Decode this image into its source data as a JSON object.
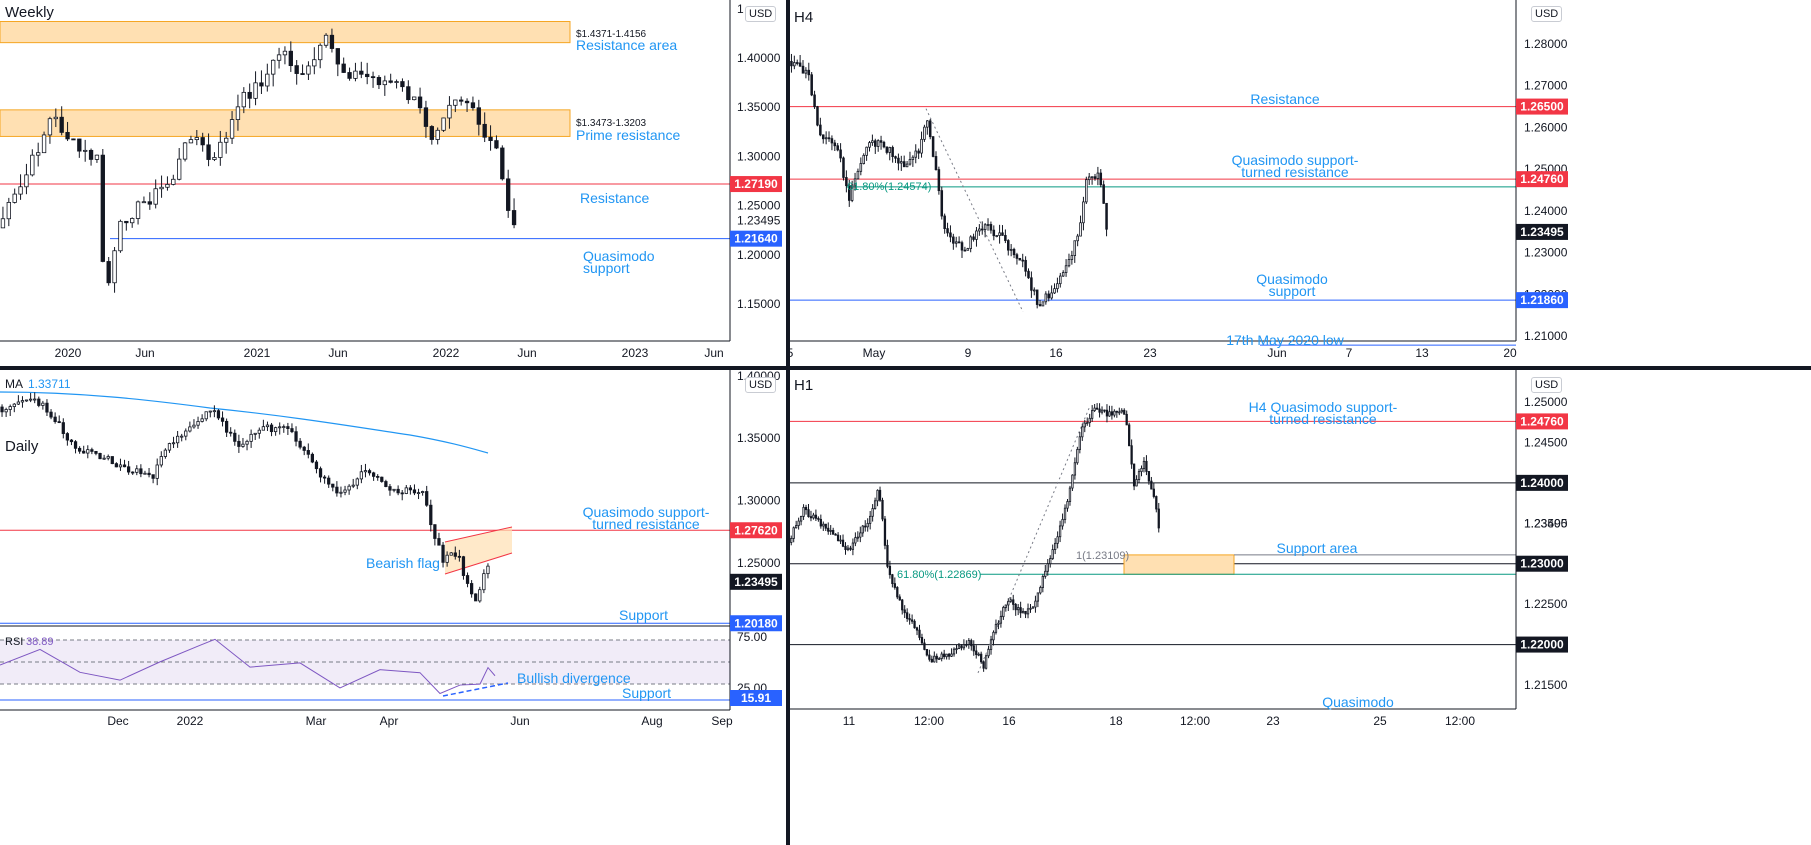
{
  "panels": {
    "weekly": {
      "title": "Weekly",
      "currency": "USD",
      "y_ticks": [
        "1.40000",
        "1.35000",
        "1.30000",
        "1.25000",
        "1.20000",
        "1.15000"
      ],
      "y_tick_values": [
        1.4,
        1.35,
        1.3,
        1.25,
        1.2,
        1.15
      ],
      "y_top_partial": "1",
      "x_ticks": [
        "2020",
        "Jun",
        "2021",
        "Jun",
        "2022",
        "Jun",
        "2023",
        "Jun"
      ],
      "current_price": "1.23495",
      "levels": [
        {
          "value": 1.2719,
          "label": "1.27190",
          "name": "Resistance",
          "color": "#f23645"
        },
        {
          "value": 1.2164,
          "label": "1.21640",
          "name": "Quasimodo support",
          "color": "#2962ff"
        }
      ],
      "zones": [
        {
          "range_text": "$1.4371-1.4156",
          "name": "Resistance area",
          "top": 1.4371,
          "bottom": 1.4156
        },
        {
          "range_text": "$1.3473-1.3203",
          "name": "Prime resistance",
          "top": 1.3473,
          "bottom": 1.3203
        }
      ],
      "annotations": {
        "resistance": "Resistance",
        "qm_line1": "Quasimodo",
        "qm_line2": "support"
      }
    },
    "h4": {
      "title": "H4",
      "currency": "USD",
      "y_ticks": [
        "1.28000",
        "1.27000",
        "1.26000",
        "1.25000",
        "1.24000",
        "1.23000",
        "1.22000",
        "1.21000"
      ],
      "y_tick_values": [
        1.28,
        1.27,
        1.26,
        1.25,
        1.24,
        1.23,
        1.22,
        1.21
      ],
      "x_ticks": [
        "5",
        "May",
        "9",
        "16",
        "23",
        "Jun",
        "7",
        "13",
        "20"
      ],
      "current_price": "1.23495",
      "levels": [
        {
          "value": 1.265,
          "label": "1.26500",
          "name": "Resistance",
          "color": "#f23645"
        },
        {
          "value": 1.2476,
          "label": "1.24760",
          "name": "Quasimodo support-turned resistance",
          "color": "#f23645"
        },
        {
          "value": 1.2186,
          "label": "1.21860",
          "name": "Quasimodo support",
          "color": "#2962ff"
        }
      ],
      "fib_text": "61.80%(1.24574)",
      "annotations": {
        "resistance": "Resistance",
        "qst1": "Quasimodo support-",
        "qst2": "turned resistance",
        "qs1": "Quasimodo",
        "qs2": "support",
        "low": "17th May 2020 low"
      }
    },
    "daily": {
      "title": "Daily",
      "currency": "USD",
      "ma_label": "MA",
      "ma_value": "1.33711",
      "y_ticks": [
        "1.35000",
        "1.30000",
        "1.25000"
      ],
      "y_tick_values": [
        1.35,
        1.3,
        1.25
      ],
      "y_top_partial": "1.40000",
      "x_ticks": [
        "Dec",
        "2022",
        "Mar",
        "Apr",
        "Jun",
        "Aug",
        "Sep"
      ],
      "current_price": "1.23495",
      "levels": [
        {
          "value": 1.2762,
          "label": "1.27620",
          "name": "Quasimodo support-turned resistance",
          "color": "#f23645"
        },
        {
          "value": 1.2018,
          "label": "1.20180",
          "name": "Support",
          "color": "#2962ff"
        }
      ],
      "annotations": {
        "qst1": "Quasimodo support-",
        "qst2": "turned resistance",
        "flag": "Bearish flag",
        "support": "Support"
      },
      "rsi": {
        "label": "RSI",
        "value": "38.89",
        "ticks": [
          "75.00",
          "25.00"
        ],
        "support_value": "15.91",
        "divergence": "Bullish divergence",
        "support": "Support"
      }
    },
    "h1": {
      "title": "H1",
      "currency": "USD",
      "y_ticks": [
        "1.25000",
        "1.24500",
        "1.23500",
        "1.22500",
        "1.21500"
      ],
      "y_tick_values": [
        1.25,
        1.245,
        1.235,
        1.225,
        1.215
      ],
      "x_ticks": [
        "11",
        "12:00",
        "16",
        "18",
        "12:00",
        "23",
        "25",
        "12:00"
      ],
      "current_price": "1.23495",
      "levels": [
        {
          "value": 1.2476,
          "label": "1.24760",
          "name": "H4 Quasimodo support-turned resistance",
          "color": "#f23645"
        },
        {
          "value": 1.24,
          "label": "1.24000",
          "name": "",
          "color": "#131722"
        },
        {
          "value": 1.23,
          "label": "1.23000",
          "name": "",
          "color": "#131722"
        },
        {
          "value": 1.22,
          "label": "1.22000",
          "name": "",
          "color": "#131722"
        }
      ],
      "fib_text": "61.80%(1.22869)",
      "ext_text": "1(1.23109)",
      "annotations": {
        "h4qst1": "H4 Quasimodo support-",
        "h4qst2": "turned resistance",
        "support_area": "Support area",
        "qm": "Quasimodo"
      }
    }
  },
  "colors": {
    "bull": "#131722",
    "bear": "#131722",
    "resistance": "#f23645",
    "support": "#2962ff",
    "zone": "#ffe0b2",
    "zone_border": "#f5a623",
    "ma": "#2196f3",
    "rsi": "#7e57c2",
    "fib": "#089981",
    "annot": "#2196f3"
  }
}
